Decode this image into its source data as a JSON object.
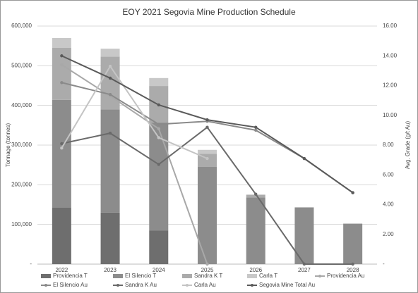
{
  "chart_data": {
    "type": "combo",
    "title": "EOY 2021 Segovia Mine Production Schedule",
    "y_label": "Tonnage (tonnes)",
    "y2_label": "Avg. Grade (g/t Au)",
    "categories": [
      "2022",
      "2023",
      "2024",
      "2025",
      "2026",
      "2027",
      "2028"
    ],
    "ylim": [
      0,
      600000
    ],
    "yticks": [
      {
        "value": 0,
        "label": "-"
      },
      {
        "value": 100000,
        "label": "100,000"
      },
      {
        "value": 200000,
        "label": "200,000"
      },
      {
        "value": 300000,
        "label": "300,000"
      },
      {
        "value": 400000,
        "label": "400,000"
      },
      {
        "value": 500000,
        "label": "500,000"
      },
      {
        "value": 600000,
        "label": "600,000"
      }
    ],
    "y2lim": [
      0,
      16
    ],
    "y2ticks": [
      {
        "value": 0,
        "label": "-"
      },
      {
        "value": 2,
        "label": "2.00"
      },
      {
        "value": 4,
        "label": "4.00"
      },
      {
        "value": 6,
        "label": "6.00"
      },
      {
        "value": 8,
        "label": "8.00"
      },
      {
        "value": 10,
        "label": "10.00"
      },
      {
        "value": 12,
        "label": "12.00"
      },
      {
        "value": 14,
        "label": "14.00"
      },
      {
        "value": 16,
        "label": "16.00"
      }
    ],
    "grid": true,
    "series": [
      {
        "name": "Providencia T",
        "type": "bar",
        "color": "#6e6e6e",
        "values": [
          142000,
          130000,
          85000,
          0,
          0,
          0,
          0
        ]
      },
      {
        "name": "El Silencio T",
        "type": "bar",
        "color": "#8c8c8c",
        "values": [
          272000,
          260000,
          272000,
          245000,
          168000,
          143000,
          102000
        ]
      },
      {
        "name": "Sandra K T",
        "type": "bar",
        "color": "#ababab",
        "values": [
          131000,
          133000,
          92000,
          33000,
          7000,
          0,
          0
        ]
      },
      {
        "name": "Carla T",
        "type": "bar",
        "color": "#c8c8c8",
        "values": [
          25000,
          20000,
          20000,
          10000,
          0,
          0,
          0
        ]
      },
      {
        "name": "Providencia Au",
        "type": "line",
        "axis": "y2",
        "color": "#a8a8a8",
        "values": [
          13.4,
          11.3,
          9.1,
          0,
          null,
          null,
          null
        ]
      },
      {
        "name": "El Silencio Au",
        "type": "line",
        "axis": "y2",
        "color": "#8a8a8a",
        "values": [
          12.2,
          11.4,
          9.4,
          9.6,
          9.0,
          7.1,
          4.8
        ]
      },
      {
        "name": "Sandra K Au",
        "type": "line",
        "axis": "y2",
        "color": "#6a6a6a",
        "values": [
          8.1,
          8.8,
          6.7,
          9.2,
          4.7,
          0,
          0
        ]
      },
      {
        "name": "Carla Au",
        "type": "line",
        "axis": "y2",
        "color": "#c4c4c4",
        "values": [
          7.8,
          13.3,
          8.5,
          7.1,
          null,
          null,
          null
        ]
      },
      {
        "name": "Segovia Mine Total Au",
        "type": "line",
        "axis": "y2",
        "color": "#5a5a5a",
        "values": [
          14.0,
          12.5,
          10.7,
          9.7,
          9.2,
          7.1,
          4.8
        ]
      }
    ]
  }
}
